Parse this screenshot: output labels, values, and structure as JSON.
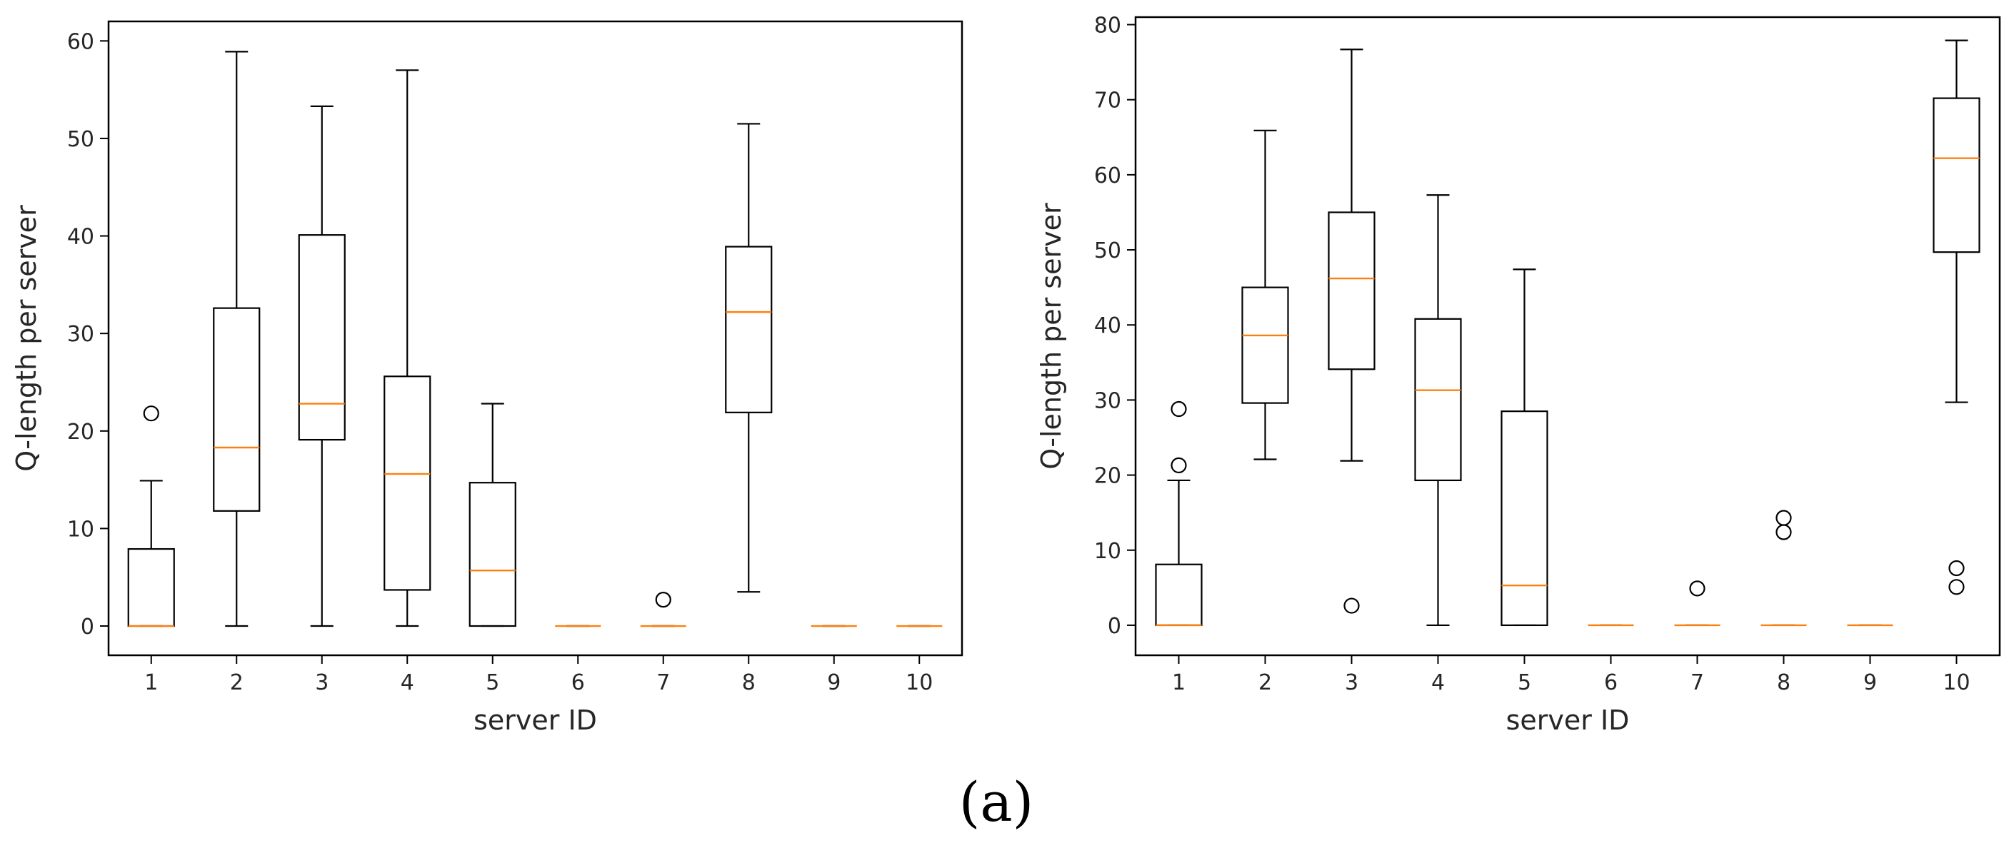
{
  "caption": "(a)",
  "chart_data": [
    {
      "type": "boxplot",
      "title": "",
      "xlabel": "server ID",
      "ylabel": "Q-length per server",
      "categories": [
        "1",
        "2",
        "3",
        "4",
        "5",
        "6",
        "7",
        "8",
        "9",
        "10"
      ],
      "ylim": [
        -3,
        62
      ],
      "yticks": [
        0,
        10,
        20,
        30,
        40,
        50,
        60
      ],
      "ytick_labels": [
        "0",
        "10",
        "20",
        "30",
        "40",
        "50",
        "60"
      ],
      "boxes": [
        {
          "label": "1",
          "whislo": 0,
          "q1": 0,
          "med": 0,
          "q3": 7.9,
          "whishi": 14.9,
          "fliers": [
            21.8
          ]
        },
        {
          "label": "2",
          "whislo": 0,
          "q1": 11.8,
          "med": 18.3,
          "q3": 32.6,
          "whishi": 58.9,
          "fliers": []
        },
        {
          "label": "3",
          "whislo": 0,
          "q1": 19.1,
          "med": 22.8,
          "q3": 40.1,
          "whishi": 53.3,
          "fliers": []
        },
        {
          "label": "4",
          "whislo": 0,
          "q1": 3.7,
          "med": 15.6,
          "q3": 25.6,
          "whishi": 57.0,
          "fliers": []
        },
        {
          "label": "5",
          "whislo": 0,
          "q1": 0,
          "med": 5.7,
          "q3": 14.7,
          "whishi": 22.8,
          "fliers": []
        },
        {
          "label": "6",
          "whislo": 0,
          "q1": 0,
          "med": 0,
          "q3": 0,
          "whishi": 0,
          "fliers": []
        },
        {
          "label": "7",
          "whislo": 0,
          "q1": 0,
          "med": 0,
          "q3": 0,
          "whishi": 0,
          "fliers": [
            2.7
          ]
        },
        {
          "label": "8",
          "whislo": 3.5,
          "q1": 21.9,
          "med": 32.2,
          "q3": 38.9,
          "whishi": 51.5,
          "fliers": []
        },
        {
          "label": "9",
          "whislo": 0,
          "q1": 0,
          "med": 0,
          "q3": 0,
          "whishi": 0,
          "fliers": []
        },
        {
          "label": "10",
          "whislo": 0,
          "q1": 0,
          "med": 0,
          "q3": 0,
          "whishi": 0,
          "fliers": []
        }
      ]
    },
    {
      "type": "boxplot",
      "title": "",
      "xlabel": "server ID",
      "ylabel": "Q-length per server",
      "categories": [
        "1",
        "2",
        "3",
        "4",
        "5",
        "6",
        "7",
        "8",
        "9",
        "10"
      ],
      "ylim": [
        -4,
        81
      ],
      "yticks": [
        0,
        10,
        20,
        30,
        40,
        50,
        60,
        70,
        80
      ],
      "ytick_labels": [
        "0",
        "10",
        "20",
        "30",
        "40",
        "50",
        "60",
        "70",
        "80"
      ],
      "boxes": [
        {
          "label": "1",
          "whislo": 0,
          "q1": 0,
          "med": 0,
          "q3": 8.1,
          "whishi": 19.3,
          "fliers": [
            21.3,
            28.8
          ]
        },
        {
          "label": "2",
          "whislo": 22.1,
          "q1": 29.6,
          "med": 38.6,
          "q3": 45.0,
          "whishi": 65.9,
          "fliers": []
        },
        {
          "label": "3",
          "whislo": 21.9,
          "q1": 34.1,
          "med": 46.2,
          "q3": 55.0,
          "whishi": 76.7,
          "fliers": [
            2.6
          ]
        },
        {
          "label": "4",
          "whislo": 0,
          "q1": 19.3,
          "med": 31.3,
          "q3": 40.8,
          "whishi": 57.3,
          "fliers": []
        },
        {
          "label": "5",
          "whislo": 0,
          "q1": 0,
          "med": 5.3,
          "q3": 28.5,
          "whishi": 47.4,
          "fliers": []
        },
        {
          "label": "6",
          "whislo": 0,
          "q1": 0,
          "med": 0,
          "q3": 0,
          "whishi": 0,
          "fliers": []
        },
        {
          "label": "7",
          "whislo": 0,
          "q1": 0,
          "med": 0,
          "q3": 0,
          "whishi": 0,
          "fliers": [
            4.9
          ]
        },
        {
          "label": "8",
          "whislo": 0,
          "q1": 0,
          "med": 0,
          "q3": 0,
          "whishi": 0,
          "fliers": [
            12.4,
            14.3
          ]
        },
        {
          "label": "9",
          "whislo": 0,
          "q1": 0,
          "med": 0,
          "q3": 0,
          "whishi": 0,
          "fliers": []
        },
        {
          "label": "10",
          "whislo": 29.7,
          "q1": 49.7,
          "med": 62.2,
          "q3": 70.2,
          "whishi": 77.9,
          "fliers": [
            5.1,
            7.6
          ]
        }
      ]
    }
  ],
  "colors": {
    "box": "#000000",
    "median": "#ff7f0e",
    "text": "#262626",
    "background": "#ffffff"
  }
}
